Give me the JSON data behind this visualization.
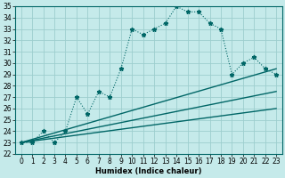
{
  "xlabel": "Humidex (Indice chaleur)",
  "xlim": [
    -0.5,
    23.5
  ],
  "ylim": [
    22,
    35
  ],
  "xticks": [
    0,
    1,
    2,
    3,
    4,
    5,
    6,
    7,
    8,
    9,
    10,
    11,
    12,
    13,
    14,
    15,
    16,
    17,
    18,
    19,
    20,
    21,
    22,
    23
  ],
  "yticks": [
    22,
    23,
    24,
    25,
    26,
    27,
    28,
    29,
    30,
    31,
    32,
    33,
    34,
    35
  ],
  "bg_color": "#c5eaea",
  "grid_color": "#9dcece",
  "line_color": "#006666",
  "main_line_x": [
    0,
    1,
    2,
    3,
    4,
    5,
    6,
    7,
    8,
    9,
    10,
    11,
    12,
    13,
    14,
    15,
    16,
    17,
    18,
    19,
    20,
    21,
    22,
    23
  ],
  "main_line_y": [
    23.0,
    23.0,
    24.0,
    23.0,
    24.0,
    27.0,
    25.5,
    27.5,
    27.0,
    29.5,
    33.0,
    32.5,
    33.0,
    33.5,
    35.0,
    34.5,
    34.5,
    33.5,
    33.0,
    29.0,
    30.0,
    30.5,
    29.5,
    29.0
  ],
  "reg_line1_x": [
    0,
    23
  ],
  "reg_line1_y": [
    23.0,
    29.5
  ],
  "reg_line2_x": [
    0,
    23
  ],
  "reg_line2_y": [
    23.0,
    27.5
  ],
  "reg_line3_x": [
    0,
    23
  ],
  "reg_line3_y": [
    23.0,
    26.0
  ],
  "tick_fontsize": 5.5,
  "xlabel_fontsize": 6,
  "marker_size": 3.5
}
